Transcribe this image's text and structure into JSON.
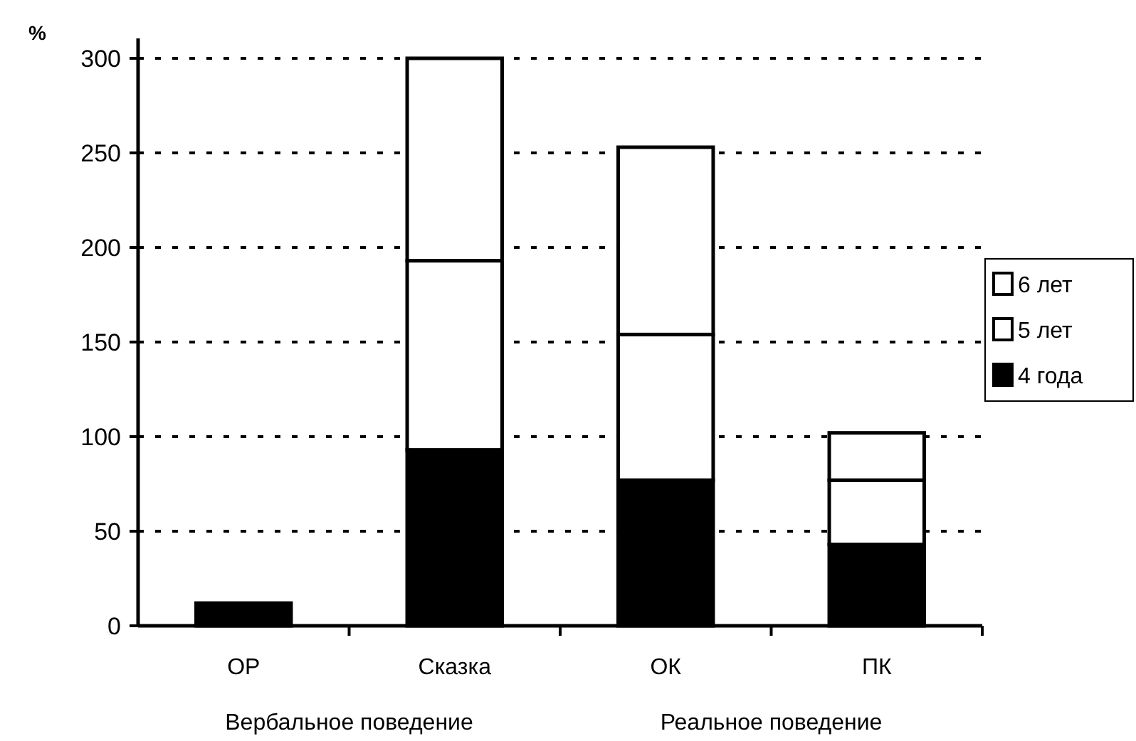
{
  "chart_data": {
    "type": "bar",
    "ylabel": "%",
    "categories": [
      "ОР",
      "Сказка",
      "ОК",
      "ПК"
    ],
    "stacked": true,
    "series": [
      {
        "name": "4 года",
        "color": "#000000",
        "values": [
          12,
          93,
          77,
          43
        ]
      },
      {
        "name": "5 лет",
        "color": "#ffffff",
        "values": [
          0,
          100,
          77,
          34
        ]
      },
      {
        "name": "6 лет",
        "color": "#ffffff",
        "values": [
          0,
          107,
          99,
          25
        ]
      }
    ],
    "ylim": [
      0,
      300
    ],
    "yticks": [
      0,
      50,
      100,
      150,
      200,
      250,
      300
    ],
    "grid": "y",
    "legend": "right",
    "annotations": [
      "Вербальное поведение",
      "Реальное поведение"
    ]
  }
}
